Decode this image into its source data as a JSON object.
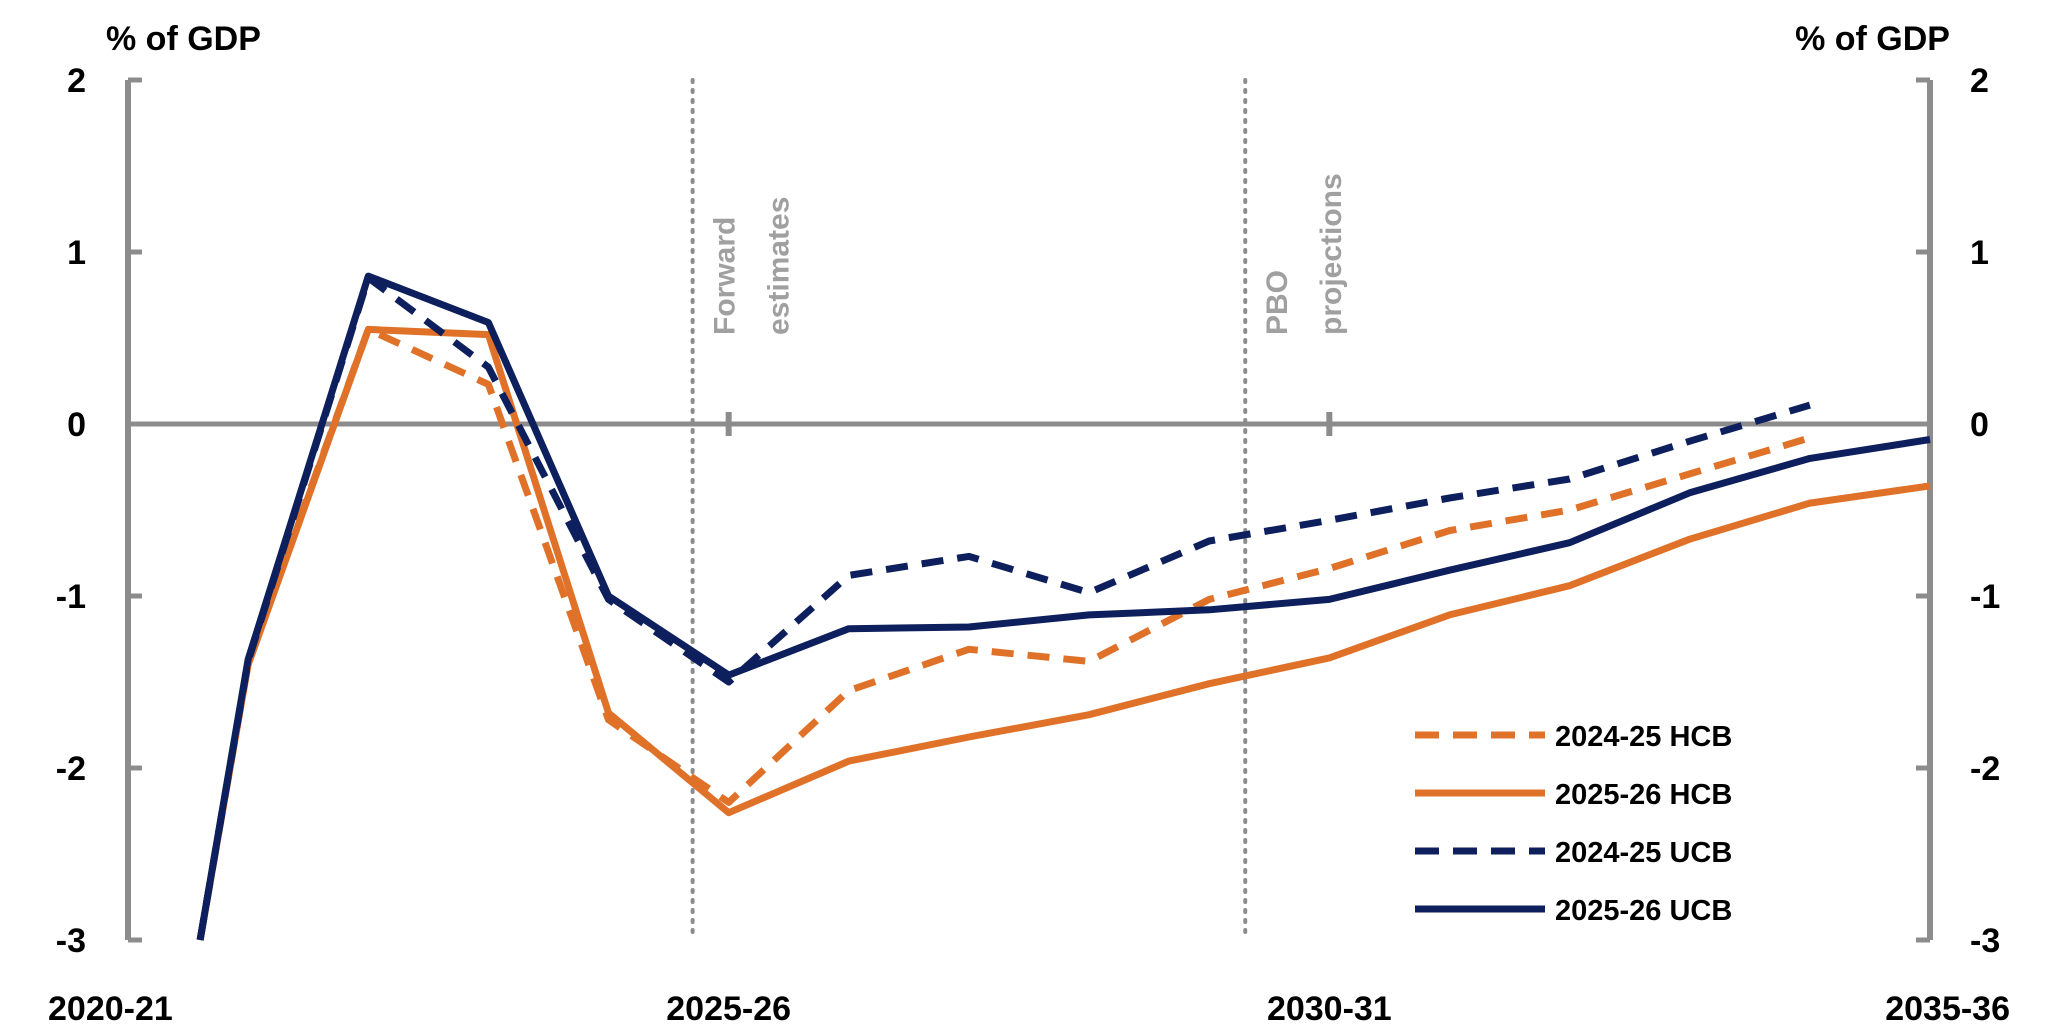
{
  "chart_data": {
    "type": "line",
    "title": "",
    "left_axis_title": "% of GDP",
    "right_axis_title": "% of GDP",
    "ylim": [
      -3,
      2
    ],
    "yticks": [
      -3,
      -2,
      -1,
      0,
      1,
      2
    ],
    "xlim": [
      2020,
      2035
    ],
    "x_tick_labels": [
      {
        "x": 2020,
        "label": "2020-21"
      },
      {
        "x": 2025,
        "label": "2025-26"
      },
      {
        "x": 2030,
        "label": "2030-31"
      },
      {
        "x": 2035,
        "label": "2035-36"
      }
    ],
    "vertical_markers": [
      {
        "x": 2024.7,
        "line1": "Forward",
        "line2": "estimates"
      },
      {
        "x": 2029.3,
        "line1": "PBO",
        "line2": "projections"
      }
    ],
    "legend_position": "bottom-right",
    "series": [
      {
        "name": "2024-25 HCB",
        "color": "#e07128",
        "dashed": true,
        "points": [
          [
            2020.6,
            -3.0
          ],
          [
            2021,
            -1.38
          ],
          [
            2022,
            0.55
          ],
          [
            2023,
            0.23
          ],
          [
            2024,
            -1.72
          ],
          [
            2025,
            -2.2
          ],
          [
            2026,
            -1.55
          ],
          [
            2027,
            -1.31
          ],
          [
            2028,
            -1.38
          ],
          [
            2029,
            -1.02
          ],
          [
            2030,
            -0.84
          ],
          [
            2031,
            -0.62
          ],
          [
            2032,
            -0.5
          ],
          [
            2033,
            -0.29
          ],
          [
            2034,
            -0.08
          ]
        ]
      },
      {
        "name": "2025-26 HCB",
        "color": "#e07128",
        "dashed": false,
        "points": [
          [
            2020.6,
            -3.0
          ],
          [
            2021,
            -1.4
          ],
          [
            2022,
            0.55
          ],
          [
            2023,
            0.52
          ],
          [
            2024,
            -1.68
          ],
          [
            2025,
            -2.26
          ],
          [
            2026,
            -1.96
          ],
          [
            2027,
            -1.82
          ],
          [
            2028,
            -1.69
          ],
          [
            2029,
            -1.51
          ],
          [
            2030,
            -1.36
          ],
          [
            2031,
            -1.11
          ],
          [
            2032,
            -0.94
          ],
          [
            2033,
            -0.67
          ],
          [
            2034,
            -0.46
          ],
          [
            2035,
            -0.36
          ]
        ]
      },
      {
        "name": "2024-25 UCB",
        "color": "#0d1f5c",
        "dashed": true,
        "points": [
          [
            2020.6,
            -3.0
          ],
          [
            2021,
            -1.38
          ],
          [
            2022,
            0.85
          ],
          [
            2023,
            0.33
          ],
          [
            2024,
            -1.02
          ],
          [
            2025,
            -1.5
          ],
          [
            2026,
            -0.88
          ],
          [
            2027,
            -0.77
          ],
          [
            2028,
            -0.98
          ],
          [
            2029,
            -0.68
          ],
          [
            2030,
            -0.56
          ],
          [
            2031,
            -0.43
          ],
          [
            2032,
            -0.32
          ],
          [
            2033,
            -0.1
          ],
          [
            2034,
            0.11
          ]
        ]
      },
      {
        "name": "2025-26 UCB",
        "color": "#0d1f5c",
        "dashed": false,
        "points": [
          [
            2020.6,
            -3.0
          ],
          [
            2021,
            -1.37
          ],
          [
            2022,
            0.86
          ],
          [
            2023,
            0.59
          ],
          [
            2024,
            -1.0
          ],
          [
            2025,
            -1.46
          ],
          [
            2026,
            -1.19
          ],
          [
            2027,
            -1.18
          ],
          [
            2028,
            -1.11
          ],
          [
            2029,
            -1.08
          ],
          [
            2030,
            -1.02
          ],
          [
            2031,
            -0.85
          ],
          [
            2032,
            -0.69
          ],
          [
            2033,
            -0.4
          ],
          [
            2034,
            -0.2
          ],
          [
            2035,
            -0.09
          ]
        ]
      }
    ]
  }
}
